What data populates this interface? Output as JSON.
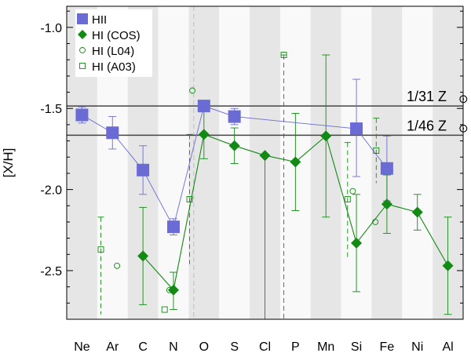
{
  "chart_data": {
    "type": "scatter",
    "ylabel": "[X/H]",
    "xlabel": "",
    "ylim": [
      -2.8,
      -0.87
    ],
    "yticks": [
      -1.0,
      -1.5,
      -2.0,
      -2.5
    ],
    "ytick_labels": [
      "-1.0",
      "-1.5",
      "-2.0",
      "-2.5"
    ],
    "categories": [
      "Ne",
      "Ar",
      "C",
      "N",
      "O",
      "S",
      "Cl",
      "P",
      "Mn",
      "Si",
      "Fe",
      "Ni",
      "Al"
    ],
    "band_shading": [
      "#e6e6e6",
      "#f9f9f9"
    ],
    "reference_lines": [
      {
        "y": -1.485,
        "label": "1/31 Z",
        "symbol": "⊙"
      },
      {
        "y": -1.665,
        "label": "1/46 Z",
        "symbol": "⊙"
      }
    ],
    "series": [
      {
        "name": "HII",
        "marker": "square",
        "color": "#6b6bd6",
        "line": true,
        "points": [
          {
            "x": "Ne",
            "y": -1.54,
            "lo": -1.59,
            "hi": -1.49
          },
          {
            "x": "Ar",
            "y": -1.65,
            "lo": -1.75,
            "hi": -1.55
          },
          {
            "x": "C",
            "y": -1.88,
            "lo": -2.03,
            "hi": -1.73
          },
          {
            "x": "N",
            "y": -2.23,
            "lo": -2.28,
            "hi": -2.18
          },
          {
            "x": "O",
            "y": -1.485,
            "lo": -1.52,
            "hi": -1.45
          },
          {
            "x": "S",
            "y": -1.55,
            "lo": -1.6,
            "hi": -1.5
          },
          {
            "x": "Si",
            "y": -1.625,
            "lo": -1.92,
            "hi": -1.32
          },
          {
            "x": "Fe",
            "y": -1.87,
            "lo": -2.07,
            "hi": -1.67
          }
        ]
      },
      {
        "name": "HI (COS)",
        "marker": "diamond",
        "color": "#138a13",
        "line": true,
        "points": [
          {
            "x": "C",
            "y": -2.41,
            "lo": -2.71,
            "hi": -2.11
          },
          {
            "x": "N",
            "y": -2.62,
            "lo": -2.74,
            "hi": -2.51
          },
          {
            "x": "O",
            "y": -1.66,
            "lo": -1.81,
            "hi": -1.51
          },
          {
            "x": "S",
            "y": -1.73,
            "lo": -1.84,
            "hi": -1.62
          },
          {
            "x": "Cl",
            "y": -1.79,
            "lo": -2.8,
            "hi": -1.79
          },
          {
            "x": "P",
            "y": -1.83,
            "lo": -2.13,
            "hi": -1.53
          },
          {
            "x": "Mn",
            "y": -1.67,
            "lo": -2.17,
            "hi": -1.17
          },
          {
            "x": "Si",
            "y": -2.33,
            "lo": -2.63,
            "hi": -2.03
          },
          {
            "x": "Fe",
            "y": -2.09,
            "lo": -2.27,
            "hi": -1.91
          },
          {
            "x": "Ni",
            "y": -2.14,
            "lo": -2.25,
            "hi": -2.03
          },
          {
            "x": "Al",
            "y": -2.47,
            "lo": -2.77,
            "hi": -2.17
          }
        ]
      },
      {
        "name": "HI (L04)",
        "marker": "circle-open",
        "color": "#138a13",
        "line": false,
        "points": [
          {
            "x": "Ar",
            "y": -2.47,
            "dx": 0.15
          },
          {
            "x": "N",
            "y": -2.62,
            "dx": -0.13
          },
          {
            "x": "O",
            "y": -1.39,
            "dx": -0.38
          },
          {
            "x": "Si",
            "y": -2.01,
            "dx": -0.12
          },
          {
            "x": "Fe",
            "y": -2.2,
            "dx": -0.38
          }
        ]
      },
      {
        "name": "HI (A03)",
        "marker": "square-open",
        "color": "#138a13",
        "line": false,
        "points": [
          {
            "x": "Ar",
            "y": -2.37,
            "dx": -0.38,
            "lo": -2.77,
            "hi": -2.17,
            "dashed": true
          },
          {
            "x": "N",
            "y": -2.74,
            "dx": -0.29
          },
          {
            "x": "O",
            "y": -2.06,
            "dx": -0.47,
            "lo": -2.46,
            "hi": -1.66,
            "dashed": true
          },
          {
            "x": "P",
            "y": -1.17,
            "dx": -0.38,
            "lo": -2.8,
            "hi": -1.17,
            "dashed": true
          },
          {
            "x": "Si",
            "y": -2.06,
            "dx": -0.29,
            "lo": -2.43,
            "hi": -1.71,
            "dashed": true
          },
          {
            "x": "Fe",
            "y": -1.76,
            "dx": -0.35,
            "lo": -1.96,
            "hi": -1.56,
            "dashed": true
          }
        ]
      }
    ]
  }
}
